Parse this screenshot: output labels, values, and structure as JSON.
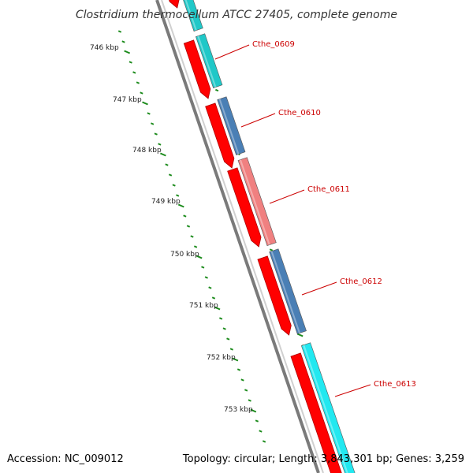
{
  "title": "Clostridium thermocellum ATCC 27405, complete genome",
  "accession": "Accession: NC_009012",
  "summary": "Topology: circular; Length: 3,843,301 bp; Genes: 3,259",
  "colors": {
    "backbone": "#8a8a8a",
    "tick": "#1a8a1a",
    "cds": "#ff0000",
    "label": "#cc0000"
  },
  "ruler": [
    {
      "label": "746 kbp"
    },
    {
      "label": "747 kbp"
    },
    {
      "label": "748 kbp"
    },
    {
      "label": "749 kbp"
    },
    {
      "label": "750 kbp"
    },
    {
      "label": "751 kbp"
    },
    {
      "label": "752 kbp"
    },
    {
      "label": "753 kbp"
    }
  ],
  "genes": [
    {
      "label": "",
      "color": "#20c8c8"
    },
    {
      "label": "Cthe_0609",
      "color": "#20c8c8"
    },
    {
      "label": "Cthe_0610",
      "color": "#4a7fb5"
    },
    {
      "label": "Cthe_0611",
      "color": "#f08080"
    },
    {
      "label": "Cthe_0612",
      "color": "#4a7fb5"
    },
    {
      "label": "Cthe_0613",
      "color": "#22e8f0"
    }
  ]
}
